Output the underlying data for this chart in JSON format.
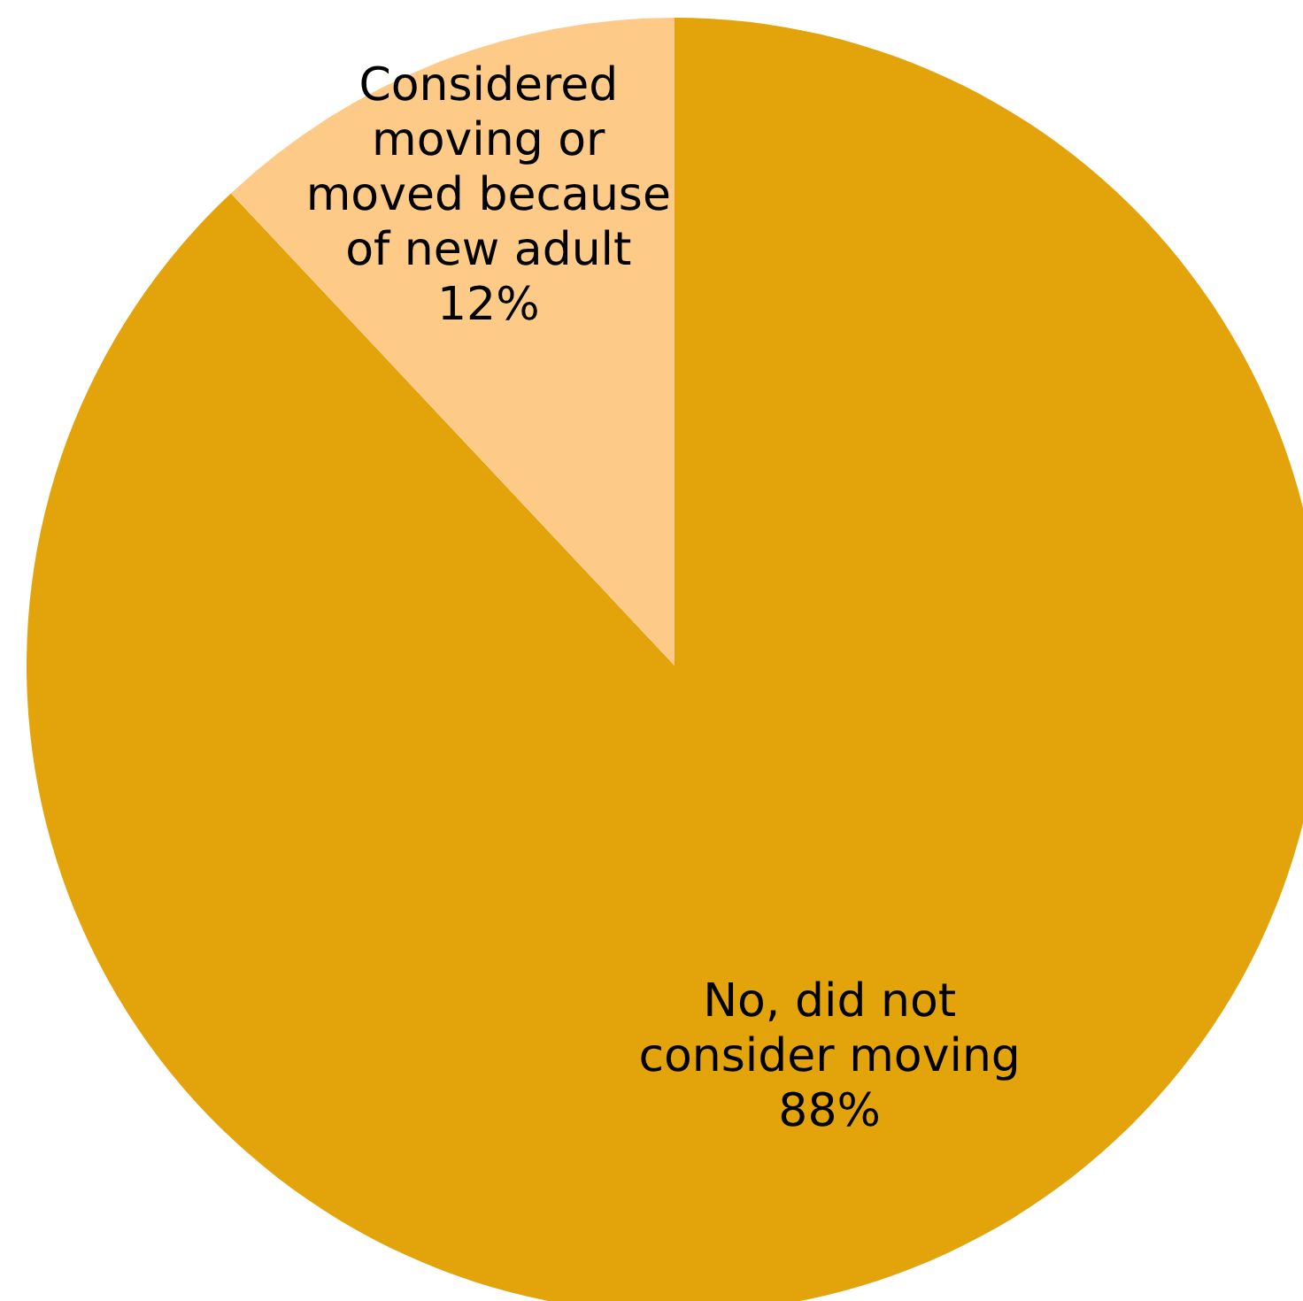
{
  "chart_data": {
    "type": "pie",
    "categories": [
      "No, did not consider moving",
      "Considered moving or moved because of new adult"
    ],
    "values": [
      88,
      12
    ],
    "colors": [
      "#e2a40a",
      "#fdca87"
    ],
    "value_labels": [
      "88%",
      "12%"
    ]
  }
}
